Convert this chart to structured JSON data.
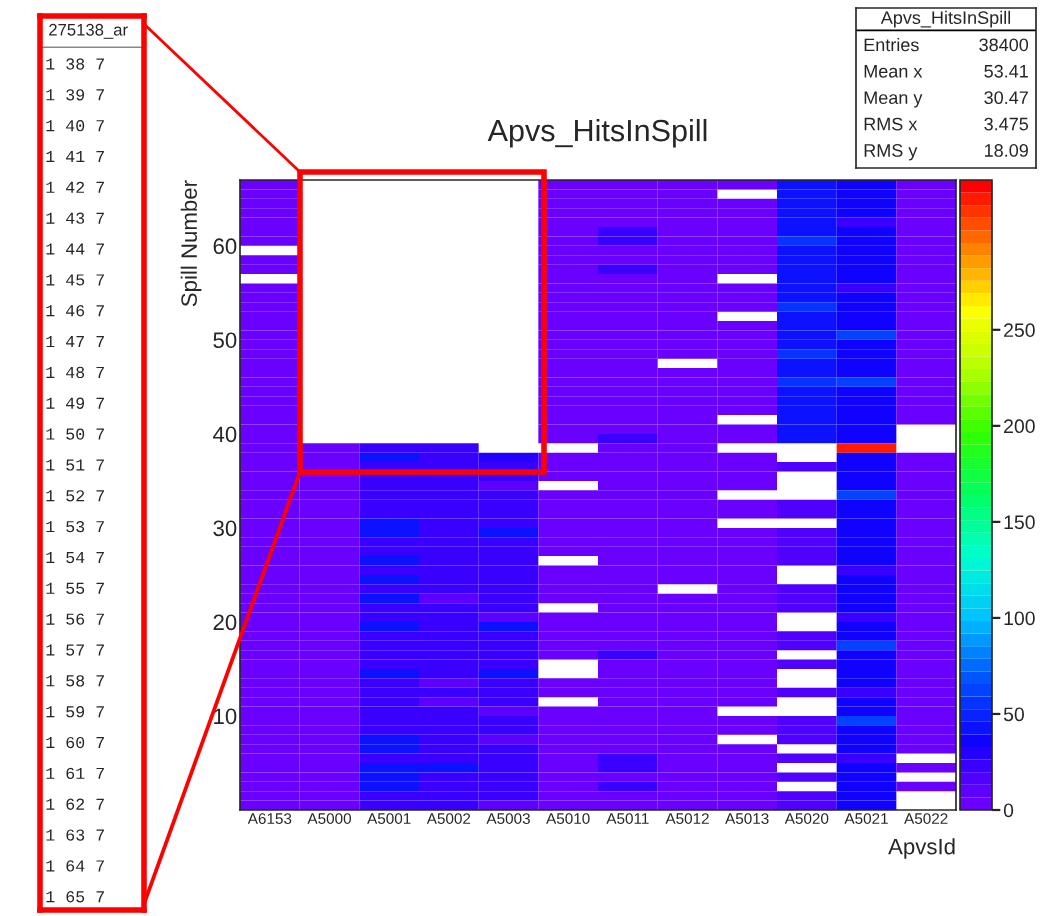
{
  "chart_data": {
    "type": "heatmap",
    "title": "Apvs_HitsInSpill",
    "xlabel": "ApvsId",
    "ylabel": "Spill Number",
    "categories": [
      "A6153",
      "A5000",
      "A5001",
      "A5002",
      "A5003",
      "A5010",
      "A5011",
      "A5012",
      "A5013",
      "A5020",
      "A5021",
      "A5022"
    ],
    "ylim": [
      0,
      67
    ],
    "yticks": [
      10,
      20,
      30,
      40,
      50,
      60
    ],
    "clim": [
      0,
      328
    ],
    "cticks": [
      0,
      50,
      100,
      150,
      200,
      250
    ],
    "grid": false,
    "cells": [
      [
        5,
        null,
        null,
        null,
        null,
        5,
        5,
        5,
        5,
        40,
        35,
        5
      ],
      [
        5,
        null,
        null,
        null,
        null,
        5,
        5,
        5,
        null,
        40,
        35,
        5
      ],
      [
        5,
        null,
        null,
        null,
        null,
        5,
        5,
        5,
        5,
        40,
        35,
        5
      ],
      [
        5,
        null,
        null,
        null,
        null,
        5,
        5,
        5,
        5,
        40,
        35,
        5
      ],
      [
        5,
        null,
        null,
        null,
        null,
        5,
        5,
        5,
        5,
        40,
        25,
        5
      ],
      [
        5,
        null,
        null,
        null,
        null,
        5,
        20,
        5,
        5,
        40,
        35,
        5
      ],
      [
        5,
        null,
        null,
        null,
        null,
        5,
        20,
        5,
        5,
        55,
        35,
        5
      ],
      [
        null,
        null,
        null,
        null,
        null,
        5,
        5,
        5,
        5,
        40,
        35,
        5
      ],
      [
        5,
        null,
        null,
        null,
        null,
        5,
        5,
        5,
        5,
        40,
        35,
        5
      ],
      [
        5,
        null,
        null,
        null,
        null,
        5,
        20,
        5,
        5,
        40,
        35,
        5
      ],
      [
        null,
        null,
        null,
        null,
        null,
        5,
        5,
        5,
        null,
        40,
        35,
        5
      ],
      [
        5,
        null,
        null,
        null,
        null,
        5,
        5,
        5,
        5,
        40,
        25,
        5
      ],
      [
        5,
        null,
        null,
        null,
        null,
        5,
        5,
        5,
        5,
        40,
        35,
        5
      ],
      [
        5,
        null,
        null,
        null,
        null,
        5,
        5,
        5,
        5,
        55,
        35,
        5
      ],
      [
        5,
        null,
        null,
        null,
        null,
        5,
        5,
        5,
        null,
        40,
        35,
        5
      ],
      [
        5,
        null,
        null,
        null,
        null,
        5,
        5,
        5,
        5,
        40,
        35,
        5
      ],
      [
        5,
        null,
        null,
        null,
        null,
        5,
        5,
        5,
        5,
        40,
        60,
        5
      ],
      [
        5,
        null,
        null,
        null,
        null,
        5,
        5,
        5,
        5,
        40,
        35,
        5
      ],
      [
        5,
        null,
        null,
        null,
        null,
        5,
        5,
        5,
        5,
        55,
        35,
        5
      ],
      [
        5,
        null,
        null,
        null,
        null,
        5,
        5,
        null,
        5,
        40,
        35,
        5
      ],
      [
        5,
        null,
        null,
        null,
        null,
        5,
        5,
        5,
        5,
        40,
        35,
        5
      ],
      [
        5,
        null,
        null,
        null,
        null,
        5,
        5,
        5,
        5,
        55,
        60,
        5
      ],
      [
        5,
        null,
        null,
        null,
        null,
        5,
        5,
        5,
        5,
        40,
        35,
        5
      ],
      [
        5,
        null,
        null,
        null,
        null,
        5,
        5,
        5,
        5,
        40,
        35,
        5
      ],
      [
        5,
        null,
        null,
        null,
        null,
        5,
        5,
        5,
        5,
        40,
        35,
        5
      ],
      [
        5,
        null,
        null,
        null,
        null,
        5,
        5,
        5,
        null,
        40,
        35,
        5
      ],
      [
        5,
        null,
        null,
        null,
        null,
        5,
        5,
        5,
        5,
        40,
        35,
        null
      ],
      [
        5,
        null,
        null,
        null,
        null,
        5,
        20,
        5,
        5,
        40,
        35,
        null
      ],
      [
        5,
        5,
        25,
        25,
        null,
        null,
        5,
        5,
        null,
        null,
        320,
        null
      ],
      [
        5,
        5,
        40,
        25,
        30,
        5,
        5,
        5,
        5,
        null,
        35,
        5
      ],
      [
        5,
        5,
        25,
        25,
        25,
        5,
        5,
        5,
        5,
        15,
        35,
        5
      ],
      [
        5,
        5,
        25,
        25,
        25,
        5,
        5,
        5,
        5,
        null,
        35,
        5
      ],
      [
        5,
        5,
        25,
        25,
        12,
        null,
        5,
        5,
        5,
        null,
        35,
        5
      ],
      [
        5,
        5,
        25,
        25,
        25,
        5,
        5,
        5,
        null,
        null,
        60,
        5
      ],
      [
        5,
        5,
        25,
        25,
        25,
        5,
        5,
        5,
        5,
        15,
        35,
        5
      ],
      [
        5,
        5,
        25,
        25,
        25,
        5,
        5,
        5,
        5,
        15,
        35,
        5
      ],
      [
        5,
        5,
        40,
        25,
        25,
        5,
        5,
        5,
        null,
        null,
        35,
        5
      ],
      [
        5,
        5,
        40,
        25,
        40,
        5,
        5,
        5,
        5,
        15,
        35,
        5
      ],
      [
        5,
        5,
        25,
        25,
        25,
        5,
        5,
        5,
        5,
        15,
        35,
        5
      ],
      [
        5,
        5,
        25,
        25,
        25,
        5,
        5,
        5,
        5,
        15,
        35,
        5
      ],
      [
        5,
        5,
        40,
        25,
        25,
        null,
        5,
        5,
        5,
        15,
        35,
        5
      ],
      [
        5,
        5,
        25,
        25,
        25,
        5,
        5,
        5,
        5,
        null,
        25,
        5
      ],
      [
        5,
        5,
        40,
        25,
        25,
        5,
        5,
        5,
        5,
        null,
        35,
        5
      ],
      [
        5,
        5,
        25,
        25,
        25,
        5,
        5,
        null,
        5,
        15,
        35,
        5
      ],
      [
        5,
        5,
        40,
        12,
        25,
        5,
        5,
        5,
        5,
        15,
        35,
        5
      ],
      [
        5,
        5,
        25,
        25,
        25,
        null,
        5,
        5,
        5,
        15,
        35,
        5
      ],
      [
        5,
        5,
        25,
        25,
        12,
        5,
        5,
        5,
        5,
        null,
        25,
        5
      ],
      [
        5,
        5,
        40,
        25,
        40,
        5,
        5,
        5,
        5,
        null,
        35,
        5
      ],
      [
        5,
        5,
        25,
        25,
        25,
        5,
        5,
        5,
        5,
        15,
        35,
        5
      ],
      [
        5,
        5,
        25,
        25,
        25,
        5,
        5,
        5,
        5,
        15,
        60,
        5
      ],
      [
        5,
        5,
        25,
        25,
        25,
        5,
        20,
        5,
        5,
        null,
        35,
        5
      ],
      [
        5,
        5,
        25,
        25,
        25,
        null,
        5,
        5,
        5,
        15,
        35,
        5
      ],
      [
        5,
        5,
        40,
        25,
        40,
        null,
        5,
        5,
        5,
        null,
        35,
        5
      ],
      [
        5,
        5,
        25,
        12,
        25,
        5,
        5,
        5,
        5,
        null,
        35,
        5
      ],
      [
        5,
        5,
        25,
        25,
        25,
        5,
        5,
        5,
        5,
        15,
        25,
        5
      ],
      [
        5,
        5,
        25,
        12,
        25,
        null,
        5,
        5,
        5,
        null,
        35,
        5
      ],
      [
        5,
        5,
        25,
        25,
        12,
        5,
        5,
        5,
        null,
        null,
        35,
        5
      ],
      [
        5,
        5,
        25,
        25,
        25,
        5,
        5,
        5,
        5,
        15,
        60,
        5
      ],
      [
        5,
        5,
        25,
        25,
        25,
        5,
        5,
        5,
        5,
        15,
        35,
        5
      ],
      [
        5,
        5,
        40,
        25,
        12,
        5,
        5,
        5,
        null,
        15,
        35,
        5
      ],
      [
        5,
        5,
        40,
        25,
        25,
        5,
        5,
        5,
        5,
        null,
        35,
        5
      ],
      [
        5,
        5,
        25,
        25,
        25,
        5,
        20,
        5,
        5,
        15,
        25,
        null
      ],
      [
        5,
        5,
        40,
        40,
        25,
        5,
        20,
        5,
        5,
        null,
        35,
        5
      ],
      [
        5,
        5,
        40,
        25,
        25,
        5,
        5,
        5,
        5,
        15,
        35,
        null
      ],
      [
        5,
        5,
        40,
        25,
        25,
        5,
        20,
        5,
        5,
        null,
        35,
        5
      ],
      [
        5,
        5,
        25,
        25,
        25,
        5,
        5,
        5,
        5,
        15,
        35,
        null
      ],
      [
        5,
        5,
        25,
        25,
        12,
        5,
        5,
        5,
        5,
        15,
        35,
        null
      ]
    ],
    "annotations": [
      "Apvs_HitsInSpill",
      "Entries",
      "38400",
      "Mean x",
      "53.41",
      "Mean y",
      "30.47",
      "RMS x",
      "3.475",
      "RMS y",
      "18.09",
      "275138_ar",
      "1 38 7",
      "1 39 7",
      "1 40 7",
      "1 41 7",
      "1 42 7",
      "1 43 7",
      "1 44 7",
      "1 45 7",
      "1 46 7",
      "1 47 7",
      "1 48 7",
      "1 49 7",
      "1 50 7",
      "1 51 7",
      "1 52 7",
      "1 53 7",
      "1 54 7",
      "1 55 7",
      "1 56 7",
      "1 57 7",
      "1 58 7",
      "1 59 7",
      "1 60 7",
      "1 61 7",
      "1 62 7",
      "1 63 7",
      "1 64 7",
      "1 65 7"
    ]
  }
}
